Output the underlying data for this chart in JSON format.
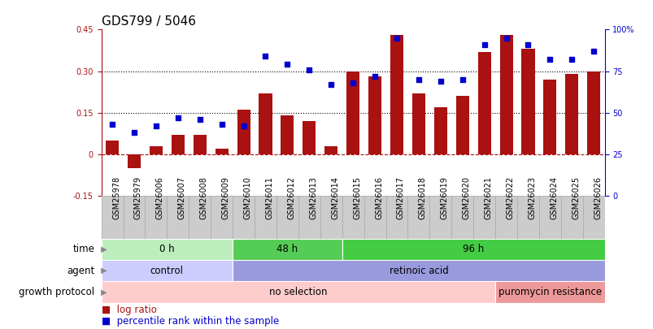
{
  "title": "GDS799 / 5046",
  "samples": [
    "GSM25978",
    "GSM25979",
    "GSM26006",
    "GSM26007",
    "GSM26008",
    "GSM26009",
    "GSM26010",
    "GSM26011",
    "GSM26012",
    "GSM26013",
    "GSM26014",
    "GSM26015",
    "GSM26016",
    "GSM26017",
    "GSM26018",
    "GSM26019",
    "GSM26020",
    "GSM26021",
    "GSM26022",
    "GSM26023",
    "GSM26024",
    "GSM26025",
    "GSM26026"
  ],
  "log_ratio": [
    0.05,
    -0.05,
    0.03,
    0.07,
    0.07,
    0.02,
    0.16,
    0.22,
    0.14,
    0.12,
    0.03,
    0.3,
    0.28,
    0.43,
    0.22,
    0.17,
    0.21,
    0.37,
    0.43,
    0.38,
    0.27,
    0.29,
    0.3
  ],
  "percentile_rank": [
    43,
    38,
    42,
    47,
    46,
    43,
    42,
    84,
    79,
    76,
    67,
    68,
    72,
    95,
    70,
    69,
    70,
    91,
    95,
    91,
    82,
    82,
    87
  ],
  "bar_color": "#aa1111",
  "dot_color": "#0000cc",
  "left_ylim": [
    -0.15,
    0.45
  ],
  "right_ylim": [
    0,
    100
  ],
  "left_yticks": [
    -0.15,
    0.0,
    0.15,
    0.3,
    0.45
  ],
  "left_yticklabels": [
    "-0.15",
    "0",
    "0.15",
    "0.30",
    "0.45"
  ],
  "right_yticks": [
    0,
    25,
    50,
    75,
    100
  ],
  "right_yticklabels": [
    "0",
    "25",
    "50",
    "75",
    "100%"
  ],
  "hline_vals": [
    0.15,
    0.3
  ],
  "zero_line_val": 0.0,
  "red_dashed_val": 0.0,
  "time_groups": [
    {
      "label": "0 h",
      "start": 0,
      "end": 6,
      "color": "#bbeebc"
    },
    {
      "label": "48 h",
      "start": 6,
      "end": 11,
      "color": "#55cc55"
    },
    {
      "label": "96 h",
      "start": 11,
      "end": 23,
      "color": "#44cc44"
    }
  ],
  "agent_groups": [
    {
      "label": "control",
      "start": 0,
      "end": 6,
      "color": "#ccccff"
    },
    {
      "label": "retinoic acid",
      "start": 6,
      "end": 23,
      "color": "#9999dd"
    }
  ],
  "growth_groups": [
    {
      "label": "no selection",
      "start": 0,
      "end": 18,
      "color": "#ffcccc"
    },
    {
      "label": "puromycin resistance",
      "start": 18,
      "end": 23,
      "color": "#ee9999"
    }
  ],
  "row_labels": [
    "time",
    "agent",
    "growth protocol"
  ],
  "row_arrow_color": "#888888",
  "legend_bar_label": "log ratio",
  "legend_dot_label": "percentile rank within the sample",
  "background_color": "#ffffff",
  "tick_label_fontsize": 7,
  "annotation_fontsize": 8.5,
  "title_fontsize": 11,
  "xtick_bg_color": "#cccccc",
  "xtick_sep_color": "#aaaaaa"
}
